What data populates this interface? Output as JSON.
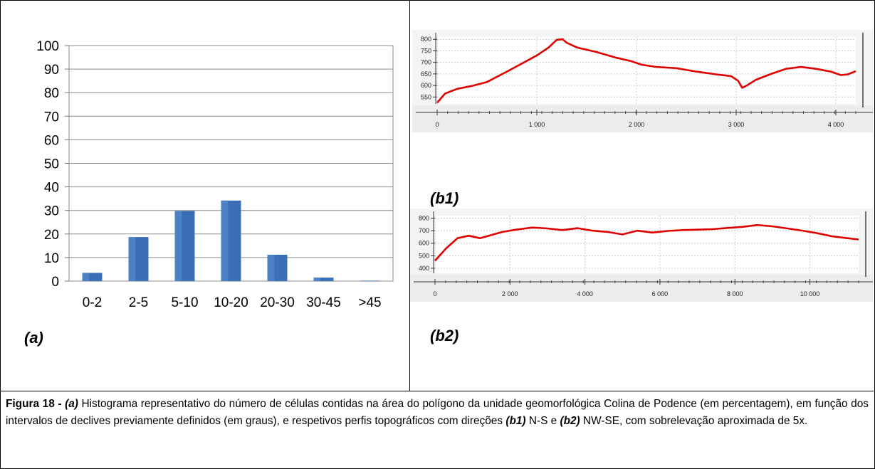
{
  "panels": {
    "a": "(a)",
    "b1": "(b1)",
    "b2": "(b2)"
  },
  "caption": {
    "figure": "Figura 18 - ",
    "a": "(a)",
    "text1": " Histograma representativo do número de células contidas na área do polígono da unidade geomorfológica Colina de Podence (em percentagem), em função dos intervalos de declives previamente definidos (em graus), e respetivos perfis topográficos com direções ",
    "b1": "(b1)",
    "text2": " N-S e ",
    "b2": "(b2)",
    "text3": " NW-SE, com sobrelevação aproximada de 5x."
  },
  "chart_data": [
    {
      "id": "a",
      "type": "bar",
      "categories": [
        "0-2",
        "2-5",
        "5-10",
        "10-20",
        "20-30",
        "30-45",
        ">45"
      ],
      "values": [
        3.5,
        18.7,
        29.8,
        34.2,
        11.2,
        1.5,
        0.2
      ],
      "yticks": [
        "0",
        "10",
        "20",
        "30",
        "40",
        "50",
        "60",
        "70",
        "80",
        "90",
        "100"
      ],
      "ylim": [
        0,
        100
      ],
      "grid": true,
      "bar_color": "#3a6fb5"
    },
    {
      "id": "b1",
      "type": "line",
      "xlim": [
        0,
        4200
      ],
      "ylim": [
        520,
        810
      ],
      "xticks": [
        "0",
        "1 000",
        "2 000",
        "3 000",
        "4 000"
      ],
      "yticks": [
        "550",
        "600",
        "650",
        "700",
        "750",
        "800"
      ],
      "line_color": "#e00000",
      "x": [
        0,
        80,
        200,
        350,
        500,
        700,
        850,
        1000,
        1120,
        1200,
        1260,
        1300,
        1400,
        1600,
        1800,
        1950,
        2050,
        2200,
        2400,
        2600,
        2800,
        2950,
        3020,
        3060,
        3100,
        3200,
        3350,
        3500,
        3650,
        3800,
        3950,
        4050,
        4120,
        4200
      ],
      "y": [
        525,
        565,
        585,
        598,
        615,
        660,
        695,
        730,
        765,
        798,
        800,
        785,
        765,
        745,
        720,
        705,
        690,
        680,
        675,
        660,
        648,
        640,
        620,
        590,
        598,
        625,
        650,
        672,
        680,
        672,
        660,
        645,
        648,
        662
      ]
    },
    {
      "id": "b2",
      "type": "line",
      "xlim": [
        0,
        11300
      ],
      "ylim": [
        360,
        820
      ],
      "xticks": [
        "0",
        "2 000",
        "4 000",
        "6 000",
        "8 000",
        "10 000"
      ],
      "yticks": [
        "400",
        "500",
        "600",
        "700",
        "800"
      ],
      "line_color": "#e00000",
      "x": [
        0,
        300,
        600,
        900,
        1200,
        1500,
        1800,
        2200,
        2600,
        3000,
        3400,
        3800,
        4200,
        4600,
        5000,
        5400,
        5800,
        6200,
        6600,
        7000,
        7400,
        7800,
        8200,
        8600,
        9000,
        9400,
        9800,
        10200,
        10600,
        11000,
        11300
      ],
      "y": [
        460,
        560,
        640,
        660,
        640,
        665,
        690,
        710,
        725,
        718,
        705,
        720,
        700,
        690,
        670,
        700,
        685,
        698,
        705,
        708,
        712,
        722,
        730,
        745,
        735,
        718,
        700,
        680,
        655,
        640,
        630
      ]
    }
  ]
}
